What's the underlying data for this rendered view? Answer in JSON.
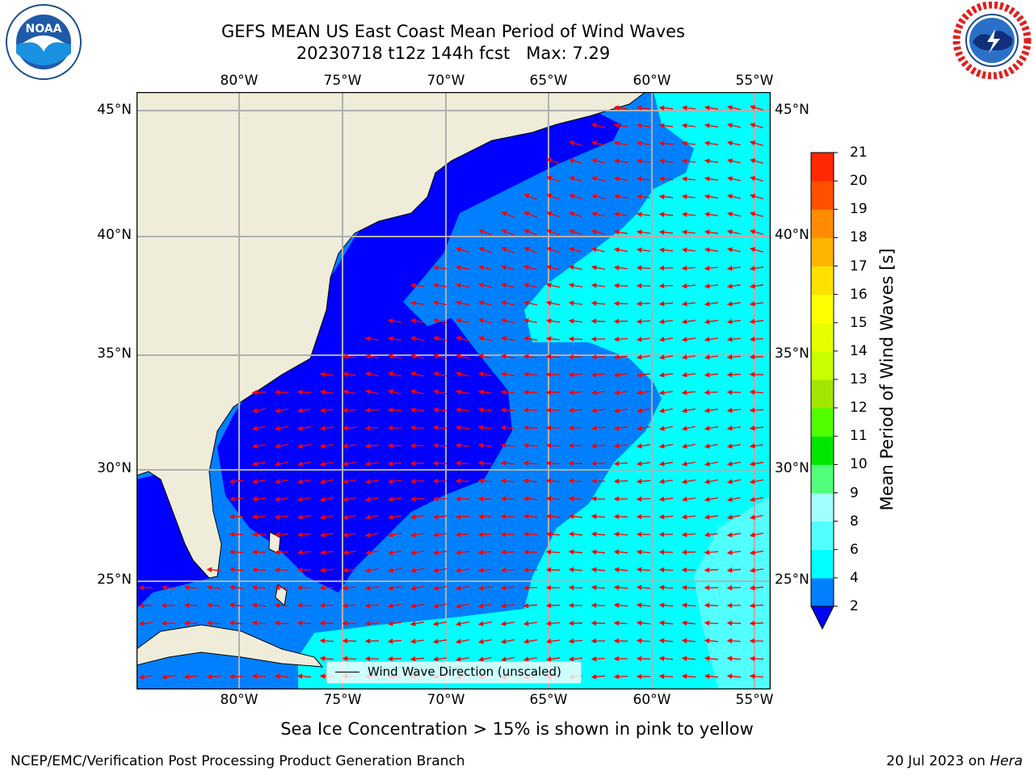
{
  "title": {
    "line1": "GEFS MEAN US East Coast Mean Period of Wind Waves",
    "line2_date": "20230718 t12z 144h fcst",
    "line2_max": "Max: 7.29"
  },
  "logos": {
    "noaa": {
      "text": "NOAA",
      "ring": "NATIONAL OCEANIC AND ATMOSPHERIC ADMINISTRATION · U.S. DEPARTMENT OF COMMERCE"
    },
    "nws": {
      "ring": "NATIONAL WEATHER SERVICE"
    }
  },
  "map": {
    "lon_labels": [
      "80°W",
      "75°W",
      "70°W",
      "65°W",
      "60°W",
      "55°W"
    ],
    "lat_labels": [
      "45°N",
      "40°N",
      "35°N",
      "30°N",
      "25°N"
    ],
    "legend_label": "Wind Wave Direction (unscaled)",
    "colors": {
      "land": "#efedd9",
      "grid": "#b0b0b0",
      "arrow": "#ff0000",
      "band_2_4": "#0080ff",
      "band_below_2": "#0000ff",
      "band_4_6": "#00ffff",
      "band_6_8": "#52ffff"
    }
  },
  "colorbar": {
    "label": "Mean Period of Wind Waves [s]",
    "ticks": [
      "2",
      "4",
      "6",
      "8",
      "9",
      "10",
      "11",
      "12",
      "13",
      "14",
      "15",
      "16",
      "17",
      "18",
      "19",
      "20",
      "21"
    ],
    "colors": [
      "#0080ff",
      "#00ffff",
      "#52ffff",
      "#a2ffff",
      "#52ff7a",
      "#00e600",
      "#52ff00",
      "#a2e600",
      "#c8ff00",
      "#e6ff00",
      "#ffff00",
      "#ffe100",
      "#ffb400",
      "#ff8c00",
      "#ff5000",
      "#ff2800"
    ],
    "under_color": "#0000ff"
  },
  "caption": "Sea Ice Concentration > 15% is shown in pink to yellow",
  "footer": {
    "left": "NCEP/EMC/Verification Post Processing Product Generation Branch",
    "right_date": "20 Jul 2023 on",
    "right_host": "Hera"
  }
}
